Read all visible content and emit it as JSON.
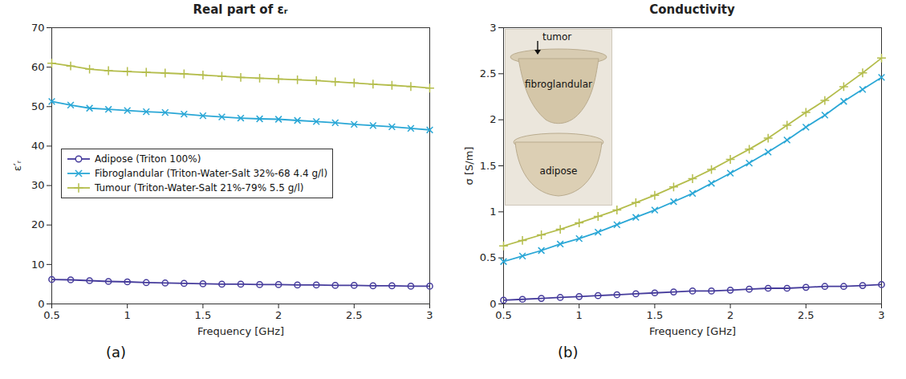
{
  "chart_data": [
    {
      "type": "line",
      "panel_label": "(a)",
      "title": "Real part of εᵣ",
      "x_label": "Frequency [GHz]",
      "y_label": "ε′ᵣ",
      "x": [
        0.5,
        0.625,
        0.75,
        0.875,
        1,
        1.125,
        1.25,
        1.375,
        1.5,
        1.625,
        1.75,
        1.875,
        2,
        2.125,
        2.25,
        2.375,
        2.5,
        2.625,
        2.75,
        2.875,
        3
      ],
      "xlim": [
        0.5,
        3
      ],
      "xticks": [
        0.5,
        1,
        1.5,
        2,
        2.5,
        3
      ],
      "ylim": [
        0,
        70
      ],
      "yticks": [
        0,
        10,
        20,
        30,
        40,
        50,
        60,
        70
      ],
      "grid": false,
      "legend": "left",
      "series": [
        {
          "name": "Adipose (Triton 100%)",
          "color": "#463c9c",
          "marker": "circle",
          "values": [
            6.2,
            6.1,
            5.9,
            5.7,
            5.6,
            5.4,
            5.3,
            5.2,
            5.1,
            5.0,
            5.0,
            4.9,
            4.9,
            4.8,
            4.8,
            4.7,
            4.7,
            4.6,
            4.6,
            4.5,
            4.5
          ]
        },
        {
          "name": "Fibroglandular (Triton-Water-Salt 32%-68 4.4 g/l)",
          "color": "#2aa7d6",
          "marker": "times",
          "values": [
            51.3,
            50.4,
            49.6,
            49.3,
            49.0,
            48.7,
            48.5,
            48.1,
            47.7,
            47.4,
            47.1,
            46.9,
            46.8,
            46.5,
            46.2,
            45.9,
            45.5,
            45.2,
            44.9,
            44.5,
            44.1
          ]
        },
        {
          "name": "Tumour (Triton-Water-Salt 21%-79% 5.5 g/l)",
          "color": "#b4bd4c",
          "marker": "plus",
          "values": [
            61.0,
            60.3,
            59.5,
            59.1,
            58.9,
            58.7,
            58.5,
            58.3,
            58.0,
            57.7,
            57.4,
            57.2,
            57.0,
            56.8,
            56.6,
            56.3,
            56.0,
            55.7,
            55.4,
            55.1,
            54.7
          ]
        }
      ]
    },
    {
      "type": "line",
      "panel_label": "(b)",
      "title": "Conductivity",
      "x_label": "Frequency [GHz]",
      "y_label": "σ [S/m]",
      "annotations": [
        "tumor",
        "fibroglandular",
        "adipose"
      ],
      "x": [
        0.5,
        0.625,
        0.75,
        0.875,
        1,
        1.125,
        1.25,
        1.375,
        1.5,
        1.625,
        1.75,
        1.875,
        2,
        2.125,
        2.25,
        2.375,
        2.5,
        2.625,
        2.75,
        2.875,
        3
      ],
      "xlim": [
        0.5,
        3
      ],
      "xticks": [
        0.5,
        1,
        1.5,
        2,
        2.5,
        3
      ],
      "ylim": [
        0,
        3
      ],
      "yticks": [
        0,
        0.5,
        1,
        1.5,
        2,
        2.5,
        3
      ],
      "grid": false,
      "series": [
        {
          "name": "Adipose (Triton 100%)",
          "color": "#463c9c",
          "marker": "circle",
          "values": [
            0.04,
            0.05,
            0.06,
            0.07,
            0.08,
            0.09,
            0.1,
            0.11,
            0.12,
            0.13,
            0.14,
            0.14,
            0.15,
            0.16,
            0.17,
            0.17,
            0.18,
            0.19,
            0.19,
            0.2,
            0.21
          ]
        },
        {
          "name": "Fibroglandular (Triton-Water-Salt 32%-68 4.4 g/l)",
          "color": "#2aa7d6",
          "marker": "times",
          "values": [
            0.46,
            0.52,
            0.58,
            0.65,
            0.71,
            0.78,
            0.86,
            0.94,
            1.02,
            1.11,
            1.2,
            1.31,
            1.42,
            1.53,
            1.65,
            1.78,
            1.92,
            2.05,
            2.2,
            2.33,
            2.46
          ]
        },
        {
          "name": "Tumour (Triton-Water-Salt 21%-79% 5.5 g/l)",
          "color": "#b4bd4c",
          "marker": "plus",
          "values": [
            0.63,
            0.69,
            0.75,
            0.81,
            0.88,
            0.95,
            1.02,
            1.1,
            1.18,
            1.27,
            1.36,
            1.46,
            1.57,
            1.68,
            1.8,
            1.94,
            2.08,
            2.21,
            2.36,
            2.51,
            2.67
          ]
        }
      ]
    }
  ]
}
